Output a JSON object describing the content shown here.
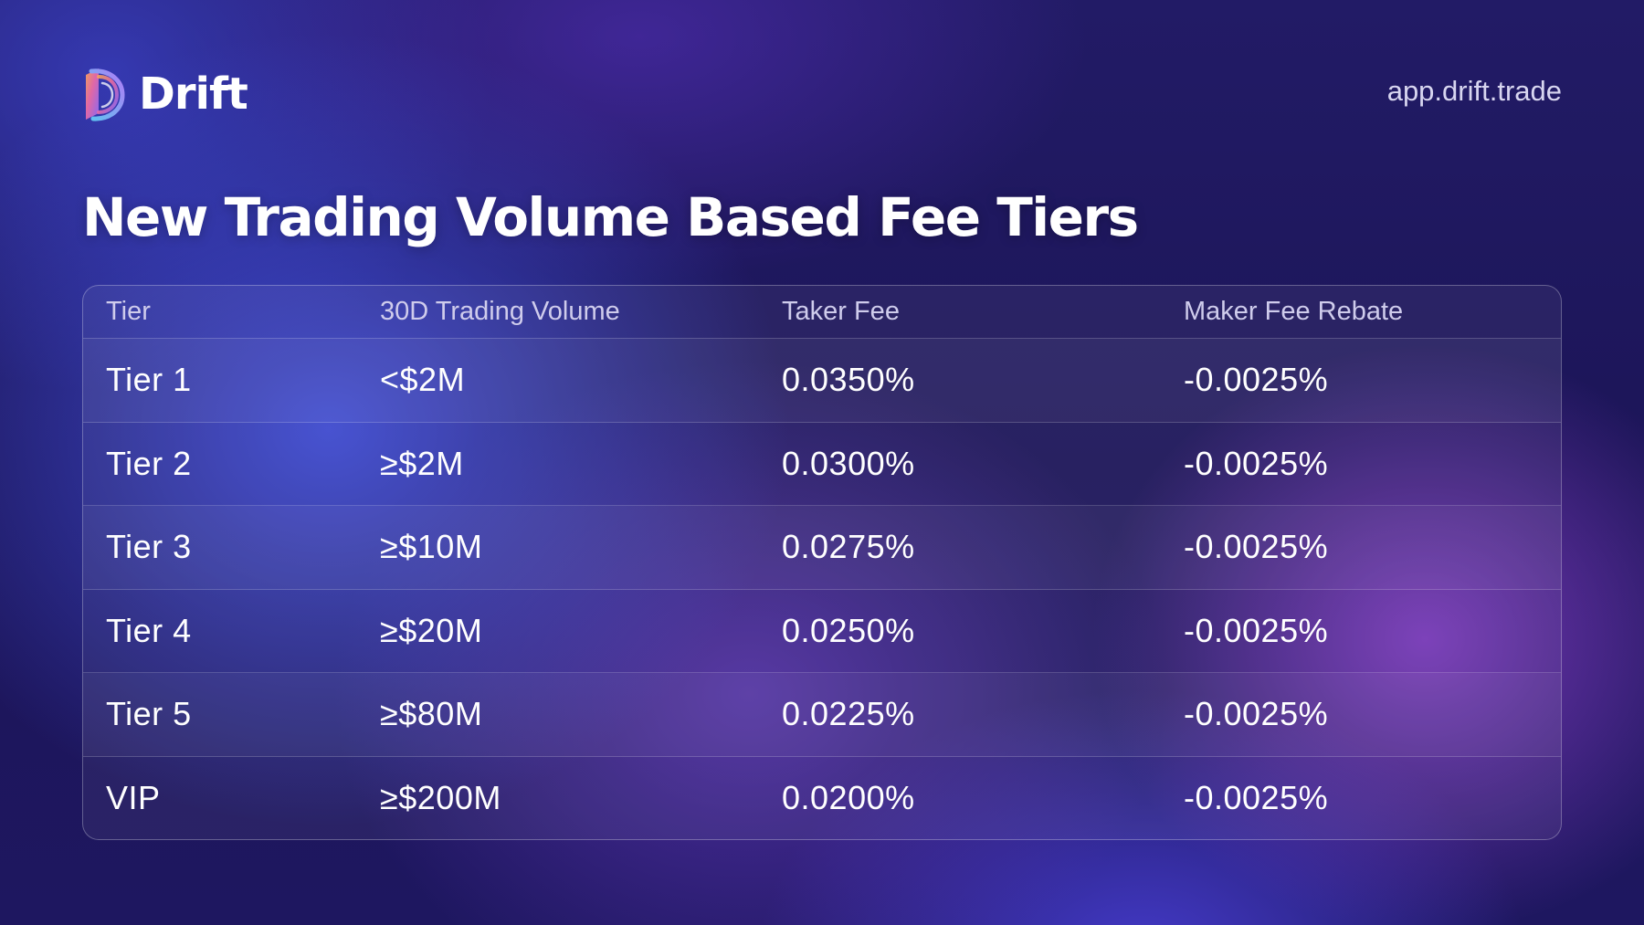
{
  "brand": {
    "name": "Drift",
    "logo_icon": "drift-logo-icon",
    "url": "app.drift.trade"
  },
  "title": "New Trading Volume Based Fee Tiers",
  "table": {
    "headers": [
      "Tier",
      "30D Trading Volume",
      "Taker Fee",
      "Maker Fee Rebate"
    ],
    "rows": [
      {
        "tier": "Tier 1",
        "volume": "<$2M",
        "taker_fee": "0.0350%",
        "maker_rebate": "-0.0025%"
      },
      {
        "tier": "Tier 2",
        "volume": "≥$2M",
        "taker_fee": "0.0300%",
        "maker_rebate": "-0.0025%"
      },
      {
        "tier": "Tier 3",
        "volume": "≥$10M",
        "taker_fee": "0.0275%",
        "maker_rebate": "-0.0025%"
      },
      {
        "tier": "Tier 4",
        "volume": "≥$20M",
        "taker_fee": "0.0250%",
        "maker_rebate": "-0.0025%"
      },
      {
        "tier": "Tier 5",
        "volume": "≥$80M",
        "taker_fee": "0.0225%",
        "maker_rebate": "-0.0025%"
      },
      {
        "tier": "VIP",
        "volume": "≥$200M",
        "taker_fee": "0.0200%",
        "maker_rebate": "-0.0025%"
      }
    ]
  },
  "colors": {
    "background": "#1c1558",
    "accent_blue": "#4656ec",
    "accent_purple": "#9b46dc",
    "text": "#ffffff",
    "muted_text": "#cfccec"
  }
}
